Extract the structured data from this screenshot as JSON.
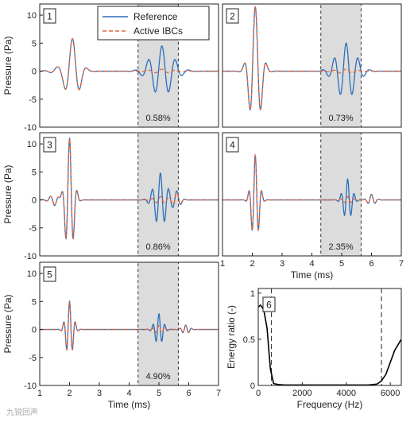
{
  "colors": {
    "reference": "#2a6fbd",
    "active": "#e2663d",
    "window_fill": "#dcdcdc",
    "energy": "#000000"
  },
  "watermark": "九锐回声",
  "chart_data": [
    {
      "type": "line",
      "panel": "1",
      "ylabel": "Pressure (Pa)",
      "xlabel": "",
      "xlim": [
        1,
        7
      ],
      "ylim": [
        -10,
        12
      ],
      "yticks": [
        -10,
        -5,
        0,
        5,
        10
      ],
      "xticks": [],
      "window": [
        4.3,
        5.65
      ],
      "percent": "0.58%",
      "legend": [
        "Reference",
        "Active IBCs"
      ],
      "series": [
        {
          "name": "Reference",
          "pulses": [
            {
              "t": 1.75,
              "a": -0.5,
              "f": 2.5,
              "s": 0.32
            },
            {
              "t": 2.1,
              "a": 6,
              "f": 2.0,
              "s": 0.22
            },
            {
              "t": 5.1,
              "a": 4.5,
              "f": 2.2,
              "s": 0.36
            }
          ]
        },
        {
          "name": "Active IBCs",
          "pulses": [
            {
              "t": 1.75,
              "a": -0.5,
              "f": 2.5,
              "s": 0.32
            },
            {
              "t": 2.1,
              "a": 6,
              "f": 2.0,
              "s": 0.22
            },
            {
              "t": 5.1,
              "a": 0.35,
              "f": 2.2,
              "s": 0.36
            }
          ]
        }
      ]
    },
    {
      "type": "line",
      "panel": "2",
      "ylabel": "",
      "xlabel": "",
      "xlim": [
        1,
        7
      ],
      "ylim": [
        -10,
        12
      ],
      "yticks": [],
      "xticks": [],
      "window": [
        4.3,
        5.65
      ],
      "percent": "0.73%",
      "series": [
        {
          "name": "Reference",
          "pulses": [
            {
              "t": 2.1,
              "a": 11.5,
              "f": 2.6,
              "s": 0.18
            },
            {
              "t": 5.15,
              "a": 5,
              "f": 2.5,
              "s": 0.32
            }
          ]
        },
        {
          "name": "Active IBCs",
          "pulses": [
            {
              "t": 2.1,
              "a": 11.5,
              "f": 2.6,
              "s": 0.18
            },
            {
              "t": 5.15,
              "a": 0.4,
              "f": 2.5,
              "s": 0.32
            }
          ]
        }
      ]
    },
    {
      "type": "line",
      "panel": "3",
      "ylabel": "Pressure (Pa)",
      "xlabel": "",
      "xlim": [
        1,
        7
      ],
      "ylim": [
        -10,
        12
      ],
      "yticks": [
        -10,
        -5,
        0,
        5,
        10
      ],
      "xticks": [],
      "window": [
        4.3,
        5.65
      ],
      "percent": "0.86%",
      "series": [
        {
          "name": "Reference",
          "pulses": [
            {
              "t": 2.0,
              "a": 11,
              "f": 3.8,
              "s": 0.13
            },
            {
              "t": 1.5,
              "a": -1.0,
              "f": 3.5,
              "s": 0.15
            },
            {
              "t": 5.05,
              "a": 4.8,
              "f": 3.6,
              "s": 0.2
            },
            {
              "t": 5.6,
              "a": 1.5,
              "f": 3.5,
              "s": 0.12
            }
          ]
        },
        {
          "name": "Active IBCs",
          "pulses": [
            {
              "t": 2.0,
              "a": 11,
              "f": 3.8,
              "s": 0.13
            },
            {
              "t": 1.5,
              "a": -1.0,
              "f": 3.5,
              "s": 0.15
            },
            {
              "t": 5.05,
              "a": 0.6,
              "f": 3.6,
              "s": 0.2
            },
            {
              "t": 5.6,
              "a": 1.3,
              "f": 3.5,
              "s": 0.12
            }
          ]
        }
      ]
    },
    {
      "type": "line",
      "panel": "4",
      "ylabel": "",
      "xlabel": "Time (ms)",
      "xlim": [
        1,
        7
      ],
      "ylim": [
        -10,
        12
      ],
      "yticks": [],
      "xticks": [
        1,
        2,
        3,
        4,
        5,
        6,
        7
      ],
      "window": [
        4.3,
        5.65
      ],
      "percent": "2.35%",
      "series": [
        {
          "name": "Reference",
          "pulses": [
            {
              "t": 2.1,
              "a": 8,
              "f": 4.5,
              "s": 0.12
            },
            {
              "t": 5.2,
              "a": 3.7,
              "f": 4.5,
              "s": 0.14
            },
            {
              "t": 6.0,
              "a": 1.0,
              "f": 4.0,
              "s": 0.12
            }
          ]
        },
        {
          "name": "Active IBCs",
          "pulses": [
            {
              "t": 2.1,
              "a": 8,
              "f": 4.5,
              "s": 0.12
            },
            {
              "t": 5.2,
              "a": 0.6,
              "f": 4.5,
              "s": 0.14
            },
            {
              "t": 6.0,
              "a": 0.9,
              "f": 4.0,
              "s": 0.12
            }
          ]
        }
      ]
    },
    {
      "type": "line",
      "panel": "5",
      "ylabel": "Pressure (Pa)",
      "xlabel": "Time (ms)",
      "xlim": [
        1,
        7
      ],
      "ylim": [
        -10,
        12
      ],
      "yticks": [
        -10,
        -5,
        0,
        5,
        10
      ],
      "xticks": [
        1,
        2,
        3,
        4,
        5,
        6,
        7
      ],
      "window": [
        4.3,
        5.65
      ],
      "percent": "4.90%",
      "series": [
        {
          "name": "Reference",
          "pulses": [
            {
              "t": 2.0,
              "a": 5,
              "f": 5.0,
              "s": 0.12
            },
            {
              "t": 5.0,
              "a": 2.8,
              "f": 5.0,
              "s": 0.13
            },
            {
              "t": 5.9,
              "a": 0.8,
              "f": 5.0,
              "s": 0.12
            }
          ]
        },
        {
          "name": "Active IBCs",
          "pulses": [
            {
              "t": 2.0,
              "a": 5,
              "f": 5.0,
              "s": 0.12
            },
            {
              "t": 5.0,
              "a": 0.7,
              "f": 5.0,
              "s": 0.13
            },
            {
              "t": 5.9,
              "a": 0.7,
              "f": 5.0,
              "s": 0.12
            }
          ]
        }
      ]
    },
    {
      "type": "line",
      "panel": "6",
      "ylabel": "Energy ratio (-)",
      "xlabel": "Frequency (Hz)",
      "xlim": [
        0,
        6500
      ],
      "ylim": [
        0,
        1.05
      ],
      "yticks": [
        0,
        0.5,
        1
      ],
      "xticks": [
        0,
        2000,
        4000,
        6000
      ],
      "dashed_lines": [
        600,
        5600
      ],
      "series": [
        {
          "name": "Energy ratio",
          "x": [
            0,
            100,
            250,
            400,
            550,
            700,
            900,
            1200,
            1600,
            2000,
            3000,
            4000,
            5000,
            5400,
            5600,
            5800,
            6000,
            6200,
            6500
          ],
          "y": [
            0.85,
            0.87,
            0.82,
            0.62,
            0.18,
            0.02,
            0.01,
            0.005,
            0.005,
            0.005,
            0.005,
            0.005,
            0.005,
            0.015,
            0.05,
            0.12,
            0.25,
            0.38,
            0.5
          ]
        }
      ]
    }
  ]
}
